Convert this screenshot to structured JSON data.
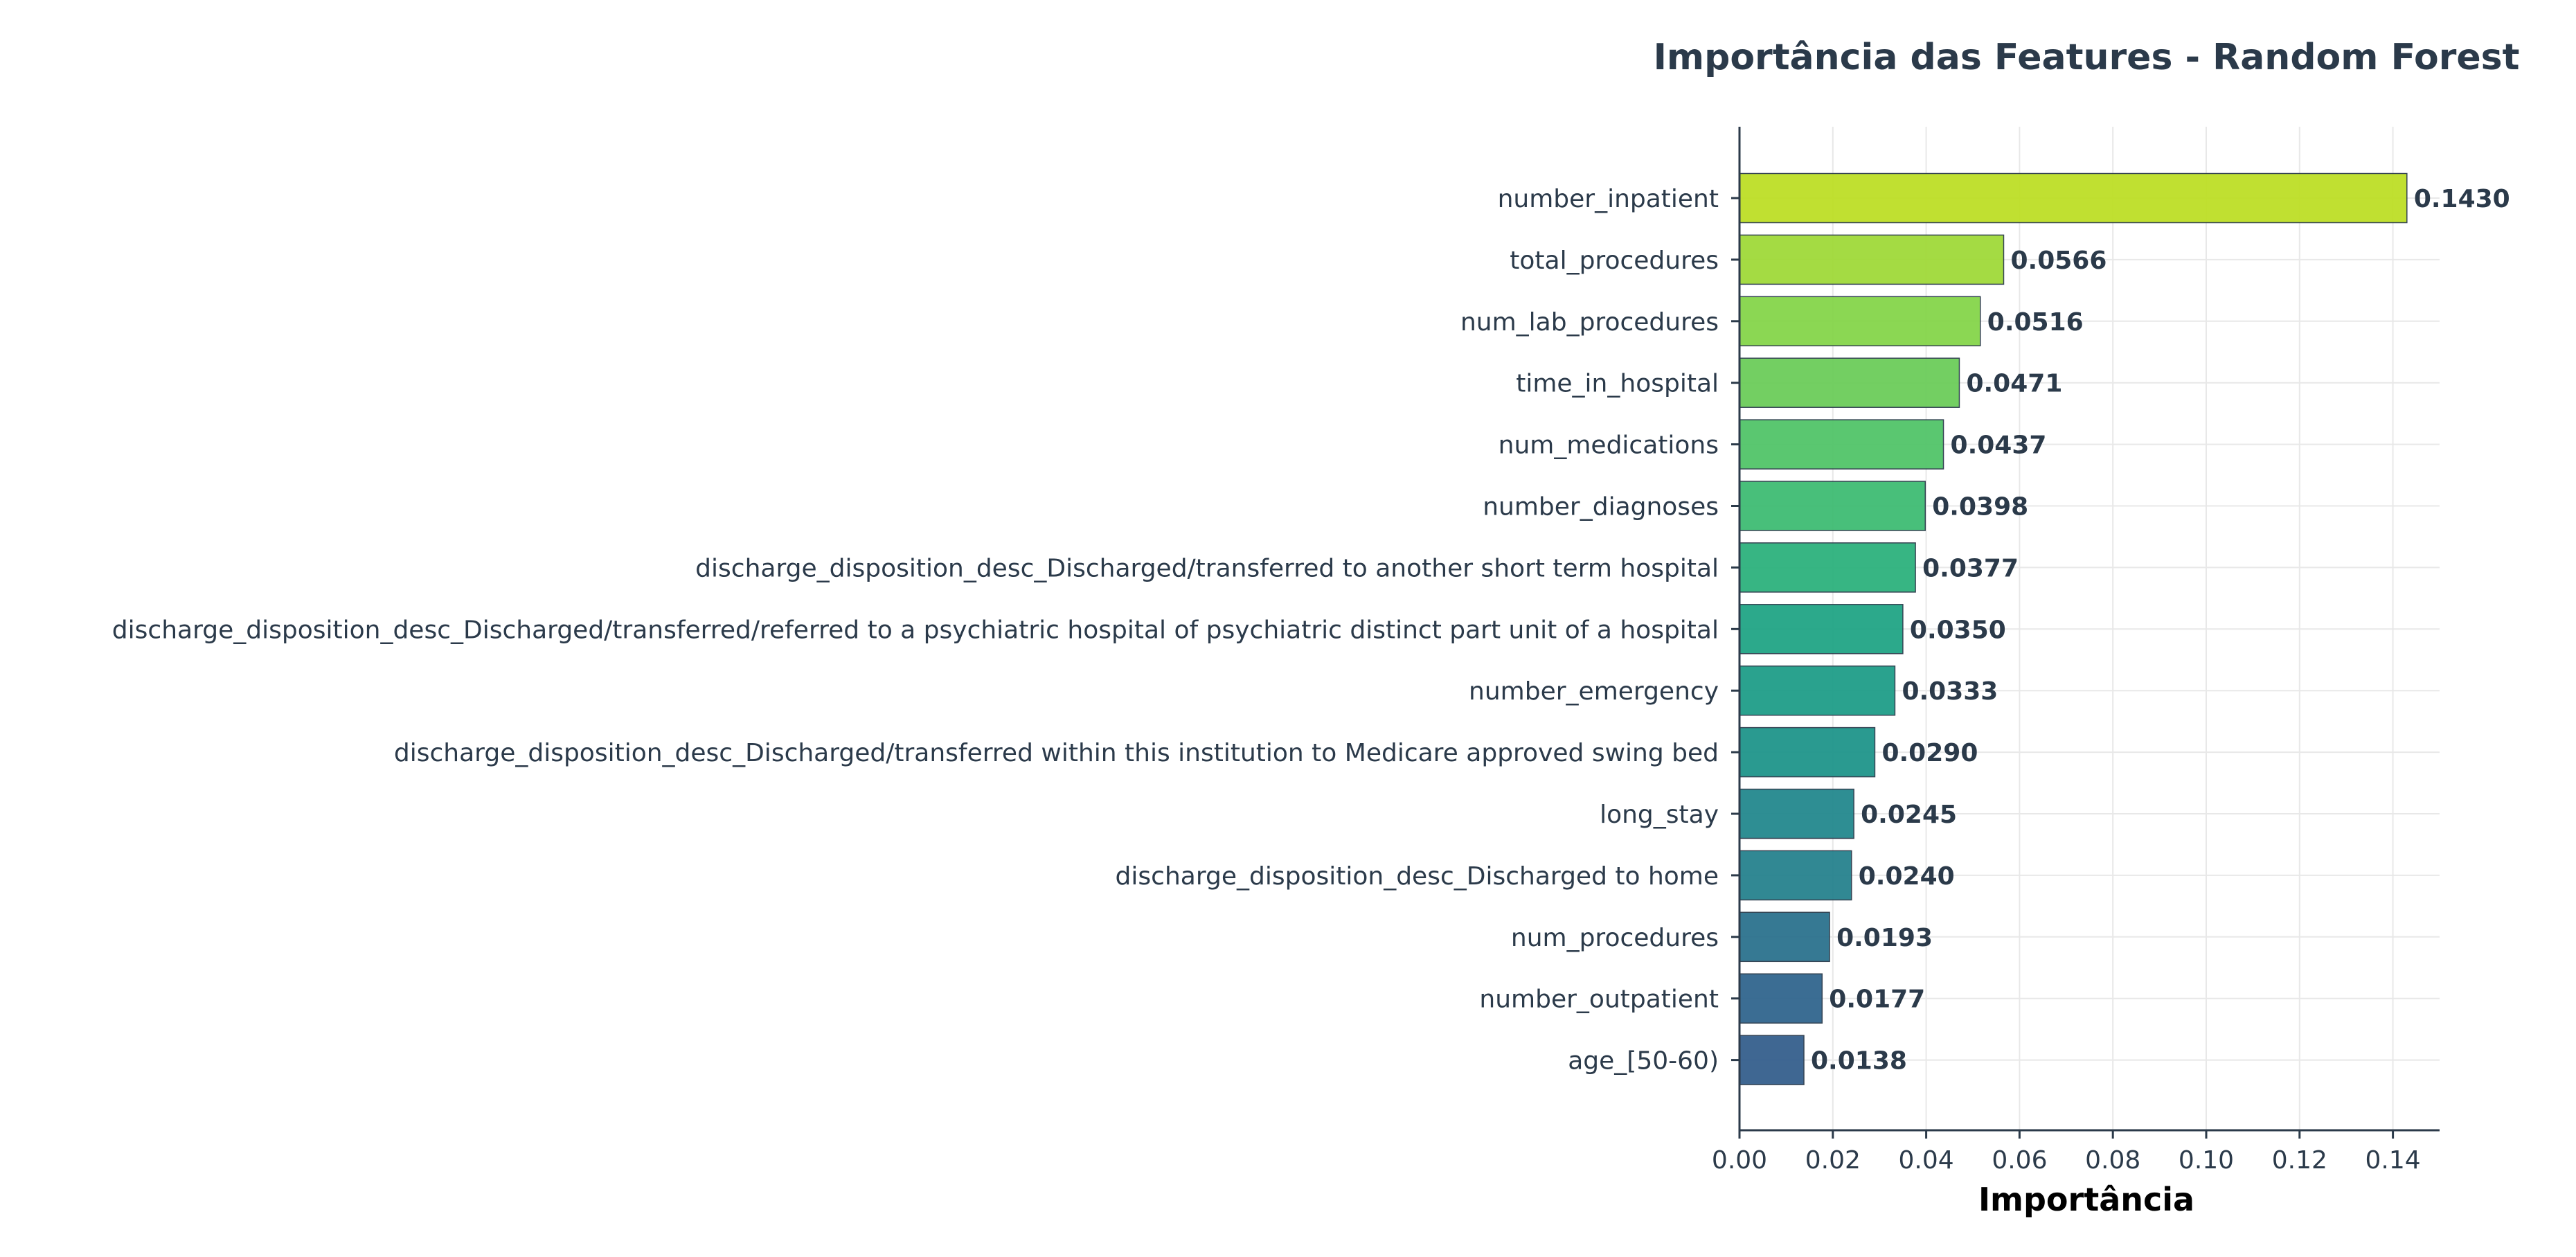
{
  "chart_data": {
    "type": "bar",
    "orientation": "horizontal",
    "title": "Importância das Features - Random Forest",
    "xlabel": "Importância",
    "ylabel": "",
    "xlim": [
      0,
      0.15
    ],
    "xticks": [
      "0.00",
      "0.02",
      "0.04",
      "0.06",
      "0.08",
      "0.10",
      "0.12",
      "0.14"
    ],
    "grid": true,
    "categories": [
      "number_inpatient",
      "total_procedures",
      "num_lab_procedures",
      "time_in_hospital",
      "num_medications",
      "number_diagnoses",
      "discharge_disposition_desc_Discharged/transferred to another short term hospital",
      "discharge_disposition_desc_Discharged/transferred/referred to a psychiatric hospital of psychiatric distinct part unit of a hospital",
      "number_emergency",
      "discharge_disposition_desc_Discharged/transferred within this institution to Medicare approved swing bed",
      "long_stay",
      "discharge_disposition_desc_Discharged to home",
      "num_procedures",
      "number_outpatient",
      "age_[50-60)"
    ],
    "values": [
      0.143,
      0.0566,
      0.0516,
      0.0471,
      0.0437,
      0.0398,
      0.0377,
      0.035,
      0.0333,
      0.029,
      0.0245,
      0.024,
      0.0193,
      0.0177,
      0.0138
    ],
    "value_labels": [
      "0.1430",
      "0.0566",
      "0.0516",
      "0.0471",
      "0.0437",
      "0.0398",
      "0.0377",
      "0.0350",
      "0.0333",
      "0.0290",
      "0.0245",
      "0.0240",
      "0.0193",
      "0.0177",
      "0.0138"
    ],
    "colors": [
      "#bddf26",
      "#a0da39",
      "#85d54a",
      "#6ccd5a",
      "#52c569",
      "#3fbc73",
      "#2db27d",
      "#21a585",
      "#1f9e89",
      "#1f958b",
      "#23898e",
      "#26828e",
      "#2c728e",
      "#31668e",
      "#355f8d"
    ]
  }
}
